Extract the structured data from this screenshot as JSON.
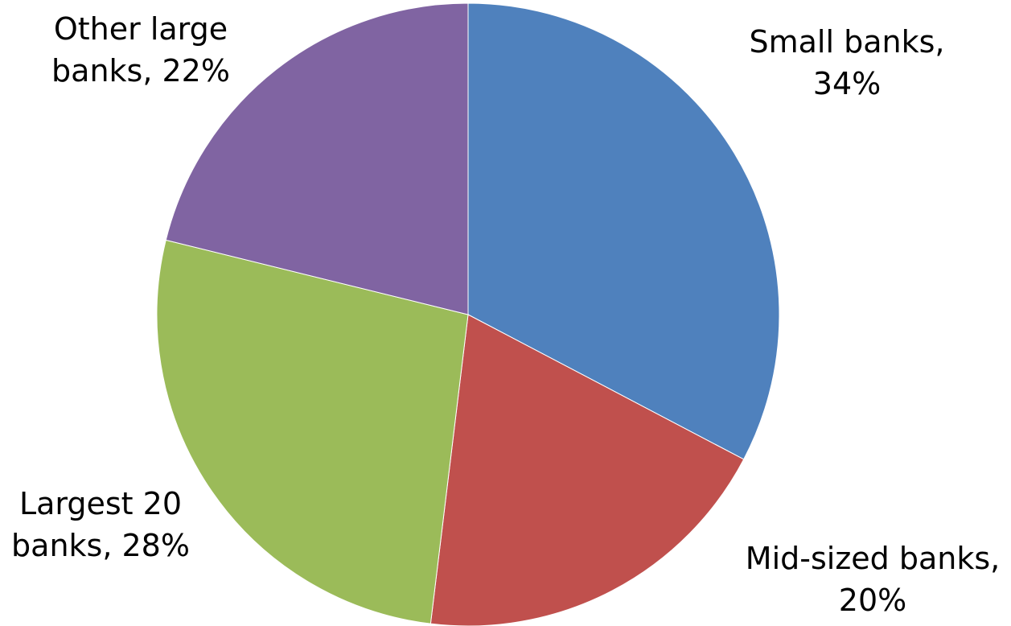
{
  "chart_data": {
    "type": "pie",
    "title": "",
    "slices": [
      {
        "label": "Small banks",
        "value": 34,
        "color": "#4F81BD",
        "label_lines": [
          "Small banks,",
          "34%"
        ]
      },
      {
        "label": "Mid-sized banks",
        "value": 20,
        "color": "#C0504D",
        "label_lines": [
          "Mid-sized banks,",
          "20%"
        ]
      },
      {
        "label": "Largest 20 banks",
        "value": 28,
        "color": "#9BBB59",
        "label_lines": [
          "Largest 20",
          "banks, 28%"
        ]
      },
      {
        "label": "Other large banks",
        "value": 22,
        "color": "#8064A2",
        "label_lines": [
          "Other large",
          "banks, 22%"
        ]
      }
    ],
    "start_angle": "12 o'clock",
    "direction": "clockwise",
    "legend": "none"
  }
}
